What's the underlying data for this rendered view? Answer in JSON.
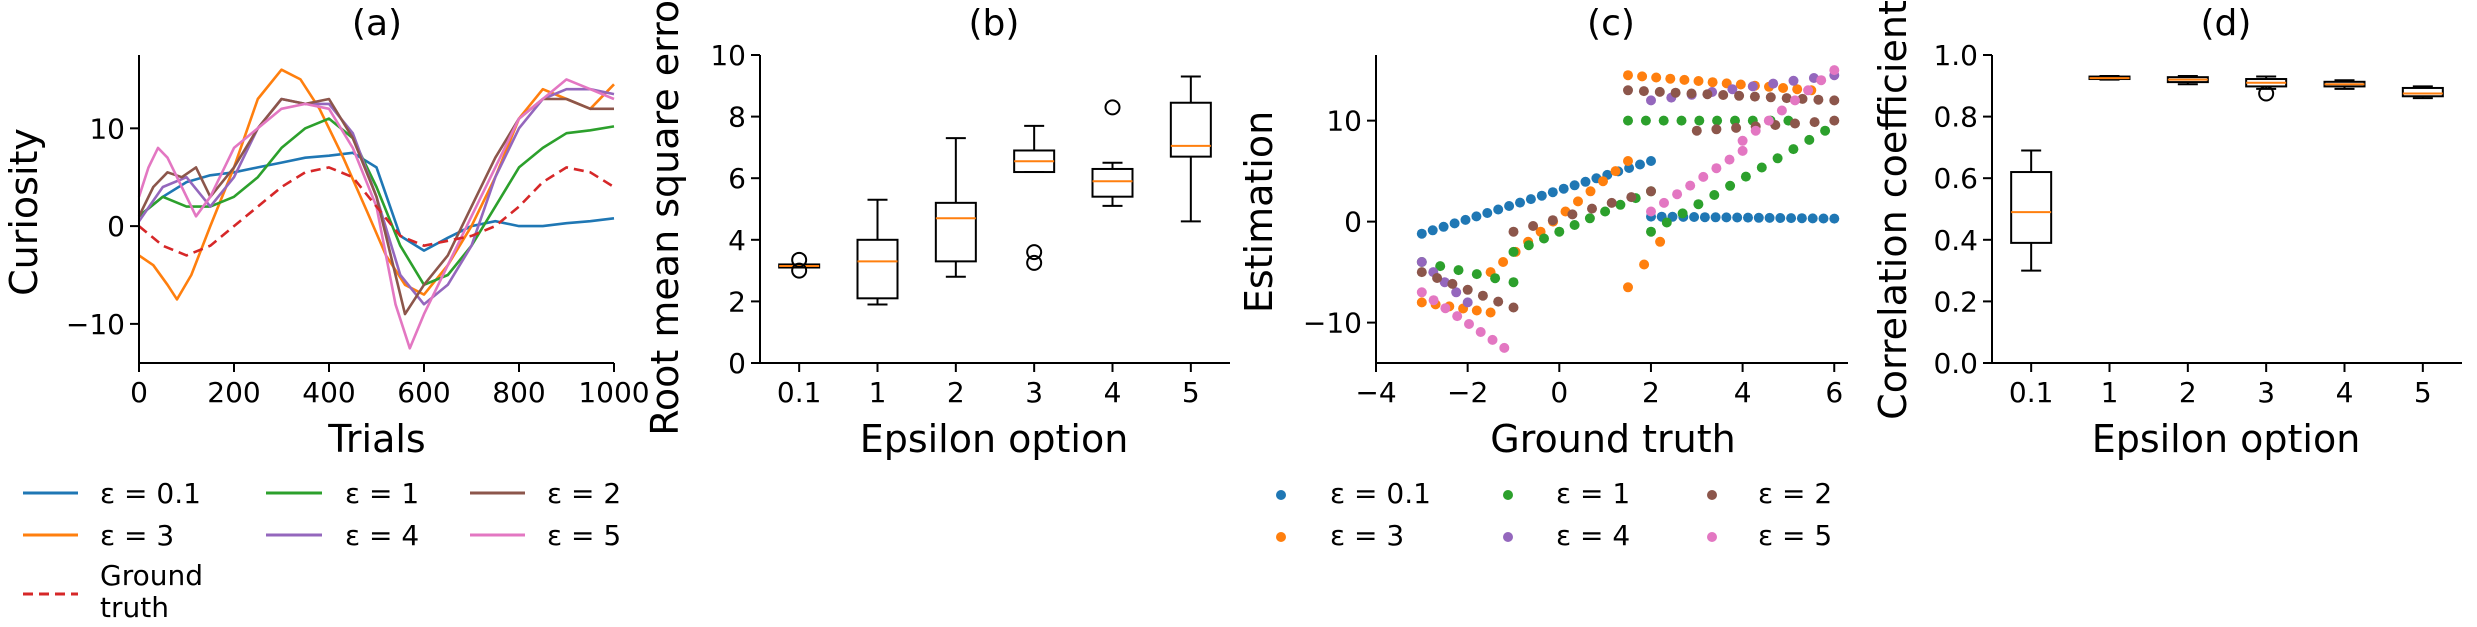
{
  "chart_data": [
    {
      "type": "line",
      "title": "(a)",
      "xlabel": "Trials",
      "ylabel": "Curiosity",
      "xlim": [
        0,
        1000
      ],
      "ylim": [
        -14,
        17.5
      ],
      "xticks": [
        "0",
        "200",
        "400",
        "600",
        "800",
        "1000"
      ],
      "yticks": [
        "−10",
        "0",
        "10"
      ],
      "series": [
        {
          "name": "ε = 0.1",
          "color": "#1f77b4",
          "x": [
            0,
            50,
            100,
            150,
            200,
            250,
            300,
            350,
            400,
            450,
            500,
            550,
            600,
            650,
            700,
            750,
            800,
            850,
            900,
            950,
            1000
          ],
          "y": [
            1,
            3,
            4.5,
            5.2,
            5.5,
            6,
            6.5,
            7,
            7.2,
            7.5,
            6,
            -1,
            -2.5,
            -1.2,
            0,
            0.5,
            0,
            0,
            0.3,
            0.5,
            0.8
          ]
        },
        {
          "name": "ε = 3",
          "color": "#ff7f0e",
          "x": [
            0,
            30,
            60,
            80,
            110,
            150,
            200,
            250,
            300,
            340,
            380,
            430,
            480,
            520,
            560,
            600,
            650,
            700,
            750,
            800,
            850,
            900,
            950,
            1000
          ],
          "y": [
            -3,
            -4,
            -6,
            -7.5,
            -5,
            0,
            6,
            13,
            16,
            15,
            12,
            7,
            1.5,
            -3,
            -6,
            -7,
            -4,
            0,
            5,
            11,
            14,
            13,
            12,
            14.5
          ]
        },
        {
          "name": "ε = 1",
          "color": "#2ca02c",
          "x": [
            0,
            50,
            100,
            150,
            200,
            250,
            300,
            350,
            400,
            450,
            500,
            550,
            600,
            650,
            700,
            750,
            800,
            850,
            900,
            950,
            1000
          ],
          "y": [
            1,
            3,
            2,
            2,
            3,
            5,
            8,
            10,
            11,
            9,
            4,
            -2,
            -6,
            -5,
            -2,
            2,
            6,
            8,
            9.5,
            9.8,
            10.2
          ]
        },
        {
          "name": "ε = 4",
          "color": "#9467bd",
          "x": [
            0,
            50,
            100,
            150,
            200,
            250,
            300,
            350,
            400,
            450,
            500,
            550,
            600,
            650,
            700,
            750,
            800,
            850,
            900,
            950,
            1000
          ],
          "y": [
            0.5,
            4,
            5,
            2,
            5,
            10,
            13,
            12.5,
            12.5,
            9.5,
            3,
            -5,
            -8,
            -6,
            -2,
            5,
            10,
            13,
            14,
            14,
            13.5
          ]
        },
        {
          "name": "ε = 2",
          "color": "#8c564b",
          "x": [
            0,
            30,
            60,
            90,
            120,
            150,
            200,
            250,
            300,
            350,
            400,
            450,
            500,
            560,
            600,
            650,
            700,
            750,
            800,
            850,
            900,
            950,
            1000
          ],
          "y": [
            1,
            4,
            5.5,
            5,
            6,
            3,
            6,
            10,
            13,
            12.5,
            13,
            9,
            3,
            -9,
            -6,
            -3,
            2,
            7,
            11,
            13,
            13,
            12,
            12
          ]
        },
        {
          "name": "ε = 5",
          "color": "#e377c2",
          "x": [
            0,
            20,
            40,
            60,
            90,
            120,
            150,
            200,
            250,
            300,
            350,
            400,
            450,
            500,
            540,
            570,
            600,
            650,
            700,
            750,
            800,
            850,
            900,
            950,
            1000
          ],
          "y": [
            3,
            6,
            8,
            7,
            4,
            1,
            3,
            8,
            10,
            12,
            12.5,
            12,
            8,
            2,
            -8,
            -12.5,
            -9,
            -4,
            1,
            6,
            11,
            13,
            15,
            14,
            13
          ]
        },
        {
          "name": "Ground truth",
          "color": "#d62728",
          "dashed": true,
          "x": [
            0,
            50,
            100,
            150,
            200,
            250,
            300,
            350,
            400,
            450,
            500,
            550,
            600,
            650,
            700,
            750,
            800,
            850,
            900,
            950,
            1000
          ],
          "y": [
            0,
            -2,
            -3,
            -2,
            0,
            2,
            4,
            5.5,
            6,
            5,
            2,
            -1,
            -2,
            -1.5,
            -1,
            0,
            2,
            4.5,
            6,
            5.5,
            4
          ]
        }
      ],
      "legend": {
        "entries": [
          {
            "label": "ε = 0.1",
            "color": "#1f77b4",
            "style": "solid"
          },
          {
            "label": "ε = 1",
            "color": "#2ca02c",
            "style": "solid"
          },
          {
            "label": "ε = 2",
            "color": "#8c564b",
            "style": "solid"
          },
          {
            "label": "ε = 3",
            "color": "#ff7f0e",
            "style": "solid"
          },
          {
            "label": "ε = 4",
            "color": "#9467bd",
            "style": "solid"
          },
          {
            "label": "ε = 5",
            "color": "#e377c2",
            "style": "solid"
          },
          {
            "label": "Ground",
            "label2": "truth",
            "color": "#d62728",
            "style": "dashed"
          }
        ]
      }
    },
    {
      "type": "box",
      "title": "(b)",
      "xlabel": "Epsilon option",
      "ylabel": "Root mean square error",
      "ylim": [
        0,
        10
      ],
      "yticks": [
        "0",
        "2",
        "4",
        "6",
        "8",
        "10"
      ],
      "categories": [
        "0.1",
        "1",
        "2",
        "3",
        "4",
        "5"
      ],
      "boxes": [
        {
          "whislo": 3.1,
          "q1": 3.1,
          "med": 3.15,
          "q3": 3.2,
          "whishi": 3.2,
          "fliers": [
            3.0,
            3.35
          ]
        },
        {
          "whislo": 1.9,
          "q1": 2.1,
          "med": 3.3,
          "q3": 4.0,
          "whishi": 5.3,
          "fliers": []
        },
        {
          "whislo": 2.8,
          "q1": 3.3,
          "med": 4.7,
          "q3": 5.2,
          "whishi": 7.3,
          "fliers": []
        },
        {
          "whislo": 6.2,
          "q1": 6.2,
          "med": 6.55,
          "q3": 6.9,
          "whishi": 7.7,
          "fliers": [
            3.25,
            3.6
          ]
        },
        {
          "whislo": 5.1,
          "q1": 5.4,
          "med": 5.9,
          "q3": 6.3,
          "whishi": 6.5,
          "fliers": [
            8.3
          ]
        },
        {
          "whislo": 4.6,
          "q1": 6.7,
          "med": 7.05,
          "q3": 8.45,
          "whishi": 9.3,
          "fliers": []
        }
      ],
      "median_color": "#ff7f0e"
    },
    {
      "type": "scatter",
      "title": "(c)",
      "xlabel": "Ground truth",
      "ylabel": "Estimation",
      "xlim": [
        -4,
        6.3
      ],
      "ylim": [
        -14,
        16.5
      ],
      "xticks": [
        "−4",
        "−2",
        "0",
        "2",
        "4",
        "6"
      ],
      "yticks": [
        "−10",
        "0",
        "10"
      ],
      "series": [
        {
          "name": "ε = 0.1",
          "color": "#1f77b4"
        },
        {
          "name": "ε = 3",
          "color": "#ff7f0e"
        },
        {
          "name": "ε = 1",
          "color": "#2ca02c"
        },
        {
          "name": "ε = 4",
          "color": "#9467bd"
        },
        {
          "name": "ε = 2",
          "color": "#8c564b"
        },
        {
          "name": "ε = 5",
          "color": "#e377c2"
        }
      ],
      "point_groups": [
        {
          "series": 0,
          "segments": [
            {
              "x0": -3,
              "y0": -1.2,
              "x1": 2,
              "y1": 6,
              "n": 22
            },
            {
              "x0": 2,
              "y0": 0.5,
              "x1": 6,
              "y1": 0.3,
              "n": 18
            }
          ]
        },
        {
          "series": 1,
          "segments": [
            {
              "x0": -3,
              "y0": -8,
              "x1": -1.5,
              "y1": -9,
              "n": 6
            },
            {
              "x0": -1.5,
              "y0": -5,
              "x1": 1.5,
              "y1": 6,
              "n": 12
            },
            {
              "x0": 1.5,
              "y0": 14.5,
              "x1": 5.5,
              "y1": 13,
              "n": 14
            },
            {
              "x0": 1.5,
              "y0": -6.5,
              "x1": 2.2,
              "y1": -2,
              "n": 3
            }
          ]
        },
        {
          "series": 2,
          "segments": [
            {
              "x0": -3,
              "y0": -4,
              "x1": -1,
              "y1": -6,
              "n": 6
            },
            {
              "x0": -1,
              "y0": -3,
              "x1": 2,
              "y1": 3,
              "n": 10
            },
            {
              "x0": 1.5,
              "y0": 10,
              "x1": 5,
              "y1": 10,
              "n": 10
            },
            {
              "x0": 2,
              "y0": -1,
              "x1": 5.8,
              "y1": 9,
              "n": 12
            }
          ]
        },
        {
          "series": 3,
          "segments": [
            {
              "x0": -3,
              "y0": -4,
              "x1": -2,
              "y1": -8,
              "n": 5
            },
            {
              "x0": 2,
              "y0": 12,
              "x1": 6,
              "y1": 14.5,
              "n": 10
            }
          ]
        },
        {
          "series": 4,
          "segments": [
            {
              "x0": -3,
              "y0": -5,
              "x1": -1,
              "y1": -8.5,
              "n": 7
            },
            {
              "x0": -1,
              "y0": -1,
              "x1": 2,
              "y1": 3,
              "n": 8
            },
            {
              "x0": 1.5,
              "y0": 13,
              "x1": 6,
              "y1": 12,
              "n": 14
            },
            {
              "x0": 3,
              "y0": 9,
              "x1": 6,
              "y1": 10,
              "n": 8
            }
          ]
        },
        {
          "series": 5,
          "segments": [
            {
              "x0": -3,
              "y0": -7,
              "x1": -1.2,
              "y1": -12.5,
              "n": 8
            },
            {
              "x0": 2,
              "y0": 1,
              "x1": 4,
              "y1": 7,
              "n": 8
            },
            {
              "x0": 4,
              "y0": 8,
              "x1": 6,
              "y1": 15,
              "n": 8
            }
          ]
        }
      ],
      "legend": {
        "entries": [
          {
            "label": "ε = 0.1",
            "color": "#1f77b4"
          },
          {
            "label": "ε = 1",
            "color": "#2ca02c"
          },
          {
            "label": "ε = 2",
            "color": "#8c564b"
          },
          {
            "label": "ε = 3",
            "color": "#ff7f0e"
          },
          {
            "label": "ε = 4",
            "color": "#9467bd"
          },
          {
            "label": "ε = 5",
            "color": "#e377c2"
          }
        ]
      }
    },
    {
      "type": "box",
      "title": "(d)",
      "xlabel": "Epsilon option",
      "ylabel": "Correlation coefficient",
      "ylim": [
        0,
        1.0
      ],
      "yticks": [
        "0.0",
        "0.2",
        "0.4",
        "0.6",
        "0.8",
        "1.0"
      ],
      "categories": [
        "0.1",
        "1",
        "2",
        "3",
        "4",
        "5"
      ],
      "boxes": [
        {
          "whislo": 0.3,
          "q1": 0.39,
          "med": 0.49,
          "q3": 0.62,
          "whishi": 0.69,
          "fliers": []
        },
        {
          "whislo": 0.92,
          "q1": 0.922,
          "med": 0.925,
          "q3": 0.93,
          "whishi": 0.932,
          "fliers": []
        },
        {
          "whislo": 0.905,
          "q1": 0.912,
          "med": 0.92,
          "q3": 0.928,
          "whishi": 0.932,
          "fliers": []
        },
        {
          "whislo": 0.89,
          "q1": 0.898,
          "med": 0.91,
          "q3": 0.922,
          "whishi": 0.93,
          "fliers": [
            0.875
          ]
        },
        {
          "whislo": 0.89,
          "q1": 0.898,
          "med": 0.905,
          "q3": 0.913,
          "whishi": 0.918,
          "fliers": []
        },
        {
          "whislo": 0.86,
          "q1": 0.866,
          "med": 0.875,
          "q3": 0.893,
          "whishi": 0.898,
          "fliers": []
        }
      ],
      "median_color": "#ff7f0e"
    }
  ]
}
